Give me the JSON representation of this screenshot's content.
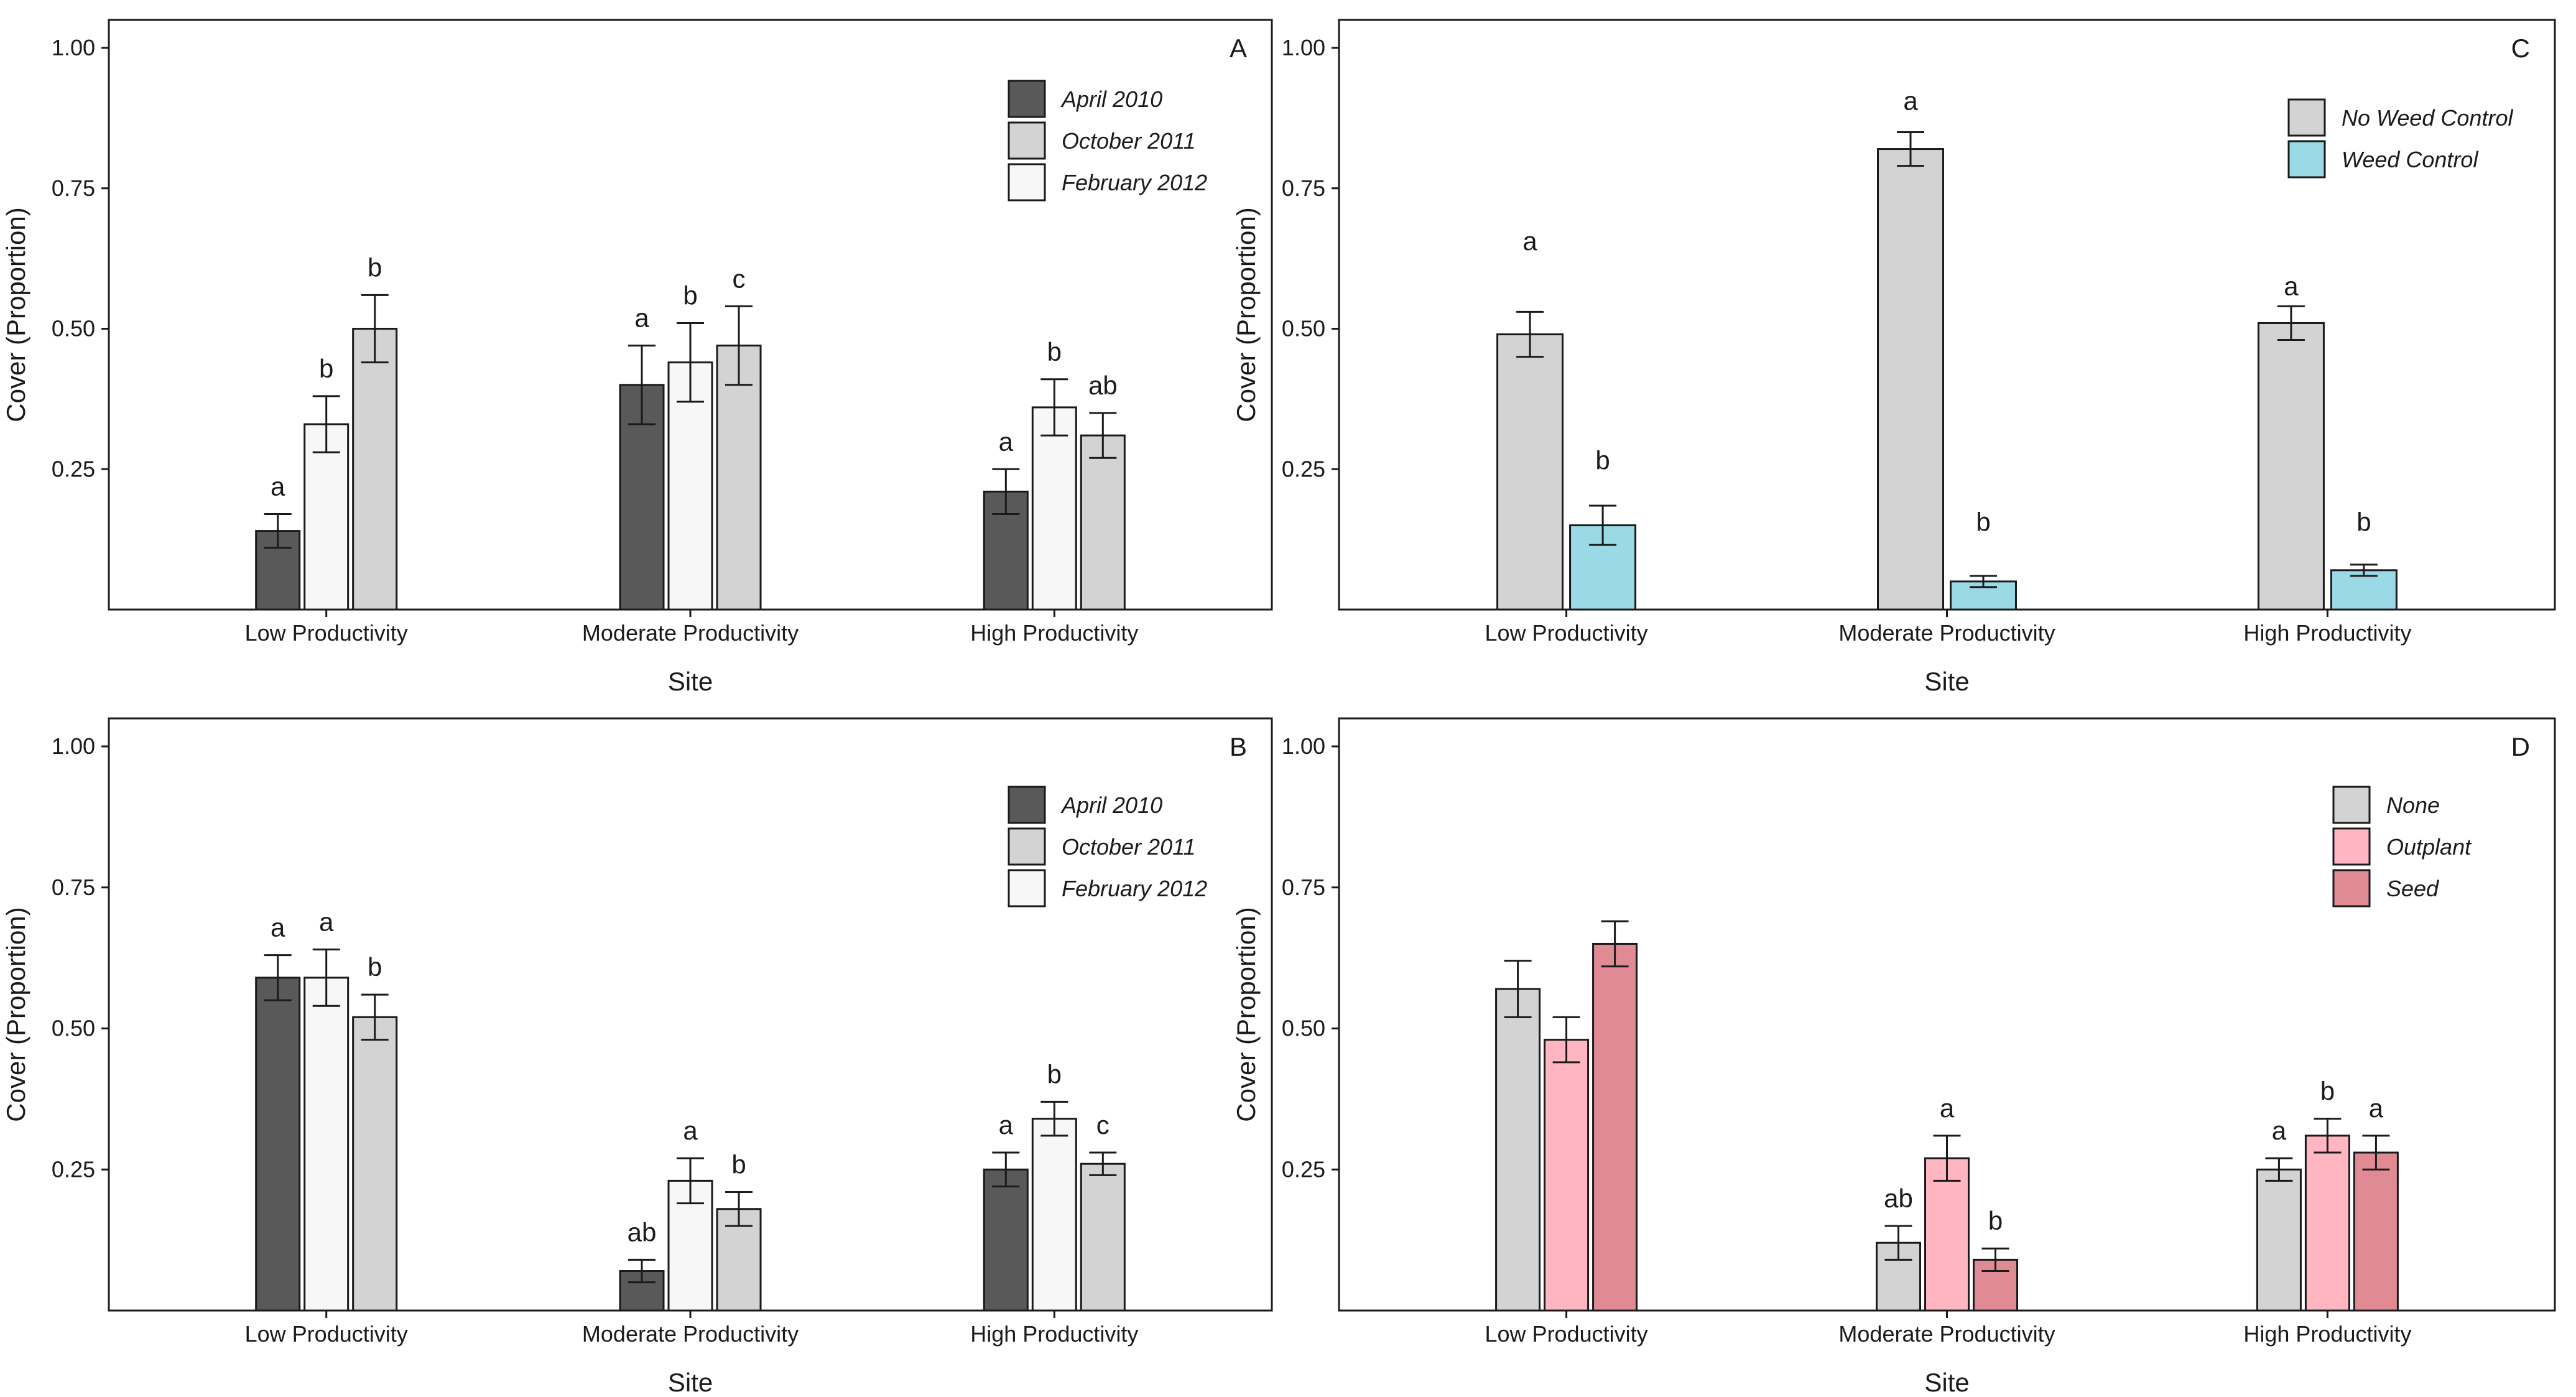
{
  "chart_data": [
    {
      "type": "bar",
      "panel_label": "A",
      "categories": [
        "Low Productivity",
        "Moderate Productivity",
        "High Productivity"
      ],
      "xlabel": "Site",
      "ylabel": "Cover (Proportion)",
      "ylim": [
        0,
        1.0
      ],
      "yticks": [
        "0.25",
        "0.50",
        "0.75",
        "1.00"
      ],
      "grid": false,
      "legend_position": "top-right",
      "series": [
        {
          "name": "April 2010",
          "color": "#595959",
          "values": [
            0.14,
            0.4,
            0.21
          ],
          "errors": [
            0.03,
            0.07,
            0.04
          ]
        },
        {
          "name": "October 2011",
          "color": "#d3d3d3",
          "values": [
            0.33,
            0.44,
            0.36
          ],
          "errors": [
            0.05,
            0.07,
            0.05
          ]
        },
        {
          "name": "February 2012",
          "color": "#f7f7f7",
          "values": [
            0.5,
            0.47,
            0.31
          ],
          "errors": [
            0.06,
            0.07,
            0.04
          ]
        }
      ],
      "bar_colors": [
        [
          "#595959",
          "#f7f7f7",
          "#d3d3d3"
        ],
        [
          "#595959",
          "#f7f7f7",
          "#d3d3d3"
        ],
        [
          "#595959",
          "#f7f7f7",
          "#d3d3d3"
        ]
      ],
      "letters": [
        [
          "a",
          "b",
          "b"
        ],
        [
          "a",
          "b",
          "c"
        ],
        [
          "a",
          "b",
          "ab"
        ]
      ]
    },
    {
      "type": "bar",
      "panel_label": "C",
      "categories": [
        "Low Productivity",
        "Moderate Productivity",
        "High Productivity"
      ],
      "xlabel": "Site",
      "ylabel": "Cover (Proportion)",
      "ylim": [
        0,
        1.0
      ],
      "yticks": [
        "0.25",
        "0.50",
        "0.75",
        "1.00"
      ],
      "grid": false,
      "legend_position": "top-right",
      "series": [
        {
          "name": "No Weed Control",
          "color": "#d3d3d3",
          "values": [
            0.49,
            0.82,
            0.51
          ],
          "errors": [
            0.04,
            0.03,
            0.03
          ]
        },
        {
          "name": "Weed Control",
          "color": "#9ad9e6",
          "values": [
            0.15,
            0.05,
            0.07
          ],
          "errors": [
            0.035,
            0.01,
            0.01
          ]
        }
      ],
      "letters": [
        [
          "a",
          "b"
        ],
        [
          "a",
          "b"
        ],
        [
          "a",
          "b"
        ]
      ],
      "letter_values": [
        [
          0.64,
          0.25
        ],
        [
          0.89,
          0.14
        ],
        [
          0.56,
          0.14
        ]
      ]
    },
    {
      "type": "bar",
      "panel_label": "B",
      "categories": [
        "Low Productivity",
        "Moderate Productivity",
        "High Productivity"
      ],
      "xlabel": "Site",
      "ylabel": "Cover (Proportion)",
      "ylim": [
        0,
        1.0
      ],
      "yticks": [
        "0.25",
        "0.50",
        "0.75",
        "1.00"
      ],
      "grid": false,
      "legend_position": "top-right",
      "series": [
        {
          "name": "April 2010",
          "color": "#595959",
          "values": [
            0.59,
            0.07,
            0.25
          ],
          "errors": [
            0.04,
            0.02,
            0.03
          ]
        },
        {
          "name": "October 2011",
          "color": "#d3d3d3",
          "values": [
            0.59,
            0.23,
            0.34
          ],
          "errors": [
            0.05,
            0.04,
            0.03
          ]
        },
        {
          "name": "February 2012",
          "color": "#f7f7f7",
          "values": [
            0.52,
            0.18,
            0.26
          ],
          "errors": [
            0.04,
            0.03,
            0.02
          ]
        }
      ],
      "bar_colors": [
        [
          "#595959",
          "#f7f7f7",
          "#d3d3d3"
        ],
        [
          "#595959",
          "#f7f7f7",
          "#d3d3d3"
        ],
        [
          "#595959",
          "#f7f7f7",
          "#d3d3d3"
        ]
      ],
      "letters": [
        [
          "a",
          "a",
          "b"
        ],
        [
          "ab",
          "a",
          "b"
        ],
        [
          "a",
          "b",
          "c"
        ]
      ]
    },
    {
      "type": "bar",
      "panel_label": "D",
      "categories": [
        "Low Productivity",
        "Moderate Productivity",
        "High Productivity"
      ],
      "xlabel": "Site",
      "ylabel": "Cover (Proportion)",
      "ylim": [
        0,
        1.0
      ],
      "yticks": [
        "0.25",
        "0.50",
        "0.75",
        "1.00"
      ],
      "grid": false,
      "legend_position": "top-right",
      "series": [
        {
          "name": "None",
          "color": "#d3d3d3",
          "values": [
            0.57,
            0.12,
            0.25
          ],
          "errors": [
            0.05,
            0.03,
            0.02
          ]
        },
        {
          "name": "Outplant",
          "color": "#ffb6c1",
          "values": [
            0.48,
            0.27,
            0.31
          ],
          "errors": [
            0.04,
            0.04,
            0.03
          ]
        },
        {
          "name": "Seed",
          "color": "#e08a94",
          "values": [
            0.65,
            0.09,
            0.28
          ],
          "errors": [
            0.04,
            0.02,
            0.03
          ]
        }
      ],
      "letters": [
        [
          "",
          "",
          ""
        ],
        [
          "ab",
          "a",
          "b"
        ],
        [
          "a",
          "b",
          "a"
        ]
      ]
    }
  ]
}
